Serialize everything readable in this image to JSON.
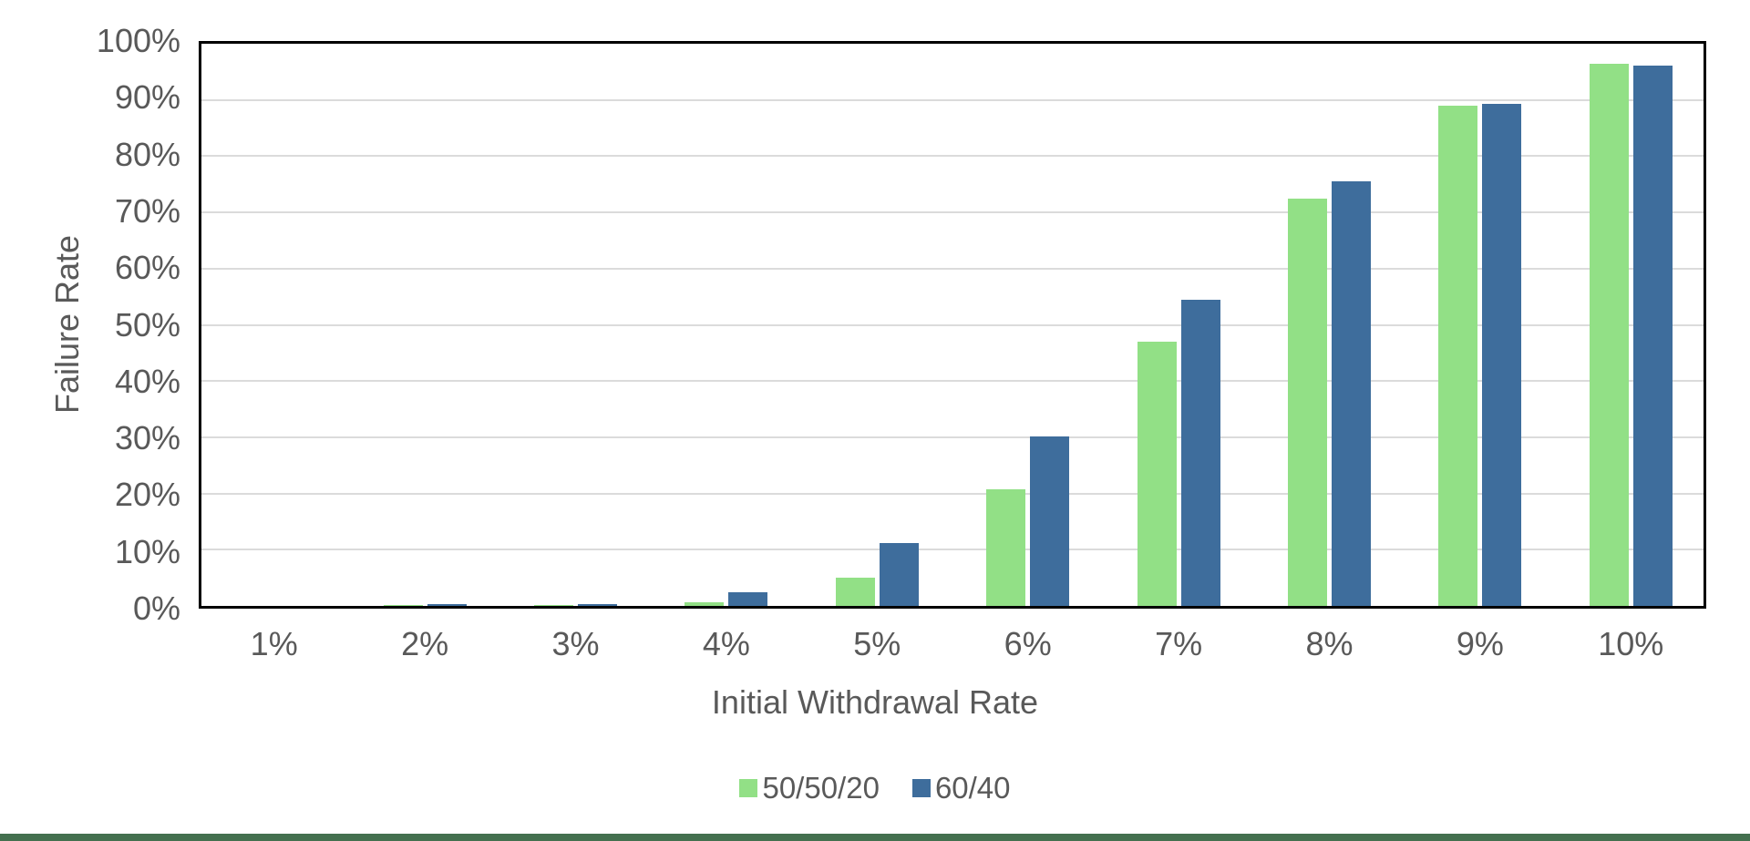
{
  "page": {
    "background": "#ffffff",
    "bottom_accent_color": "#44704f",
    "text_color": "#595959",
    "gridline_color": "#dbdbdb",
    "axis_color": "#000000"
  },
  "chart_data": {
    "type": "bar",
    "title": "",
    "xlabel": "Initial Withdrawal Rate",
    "ylabel": "Failure Rate",
    "categories": [
      "1%",
      "2%",
      "3%",
      "4%",
      "5%",
      "6%",
      "7%",
      "8%",
      "9%",
      "10%"
    ],
    "series": [
      {
        "name": "50/50/20",
        "color": "#92e086",
        "values": [
          0,
          0.1,
          0.2,
          0.7,
          5.0,
          20.8,
          47.0,
          72.5,
          89.0,
          96.5
        ]
      },
      {
        "name": "60/40",
        "color": "#3e6d9c",
        "values": [
          0,
          0.3,
          0.4,
          2.4,
          11.2,
          30.2,
          54.5,
          75.5,
          89.3,
          96.1
        ]
      }
    ],
    "y_axis": {
      "min": 0,
      "max": 100,
      "step": 10,
      "tick_labels_top_to_bottom": [
        "100%",
        "90%",
        "80%",
        "70%",
        "60%",
        "50%",
        "40%",
        "30%",
        "20%",
        "10%",
        "0%"
      ]
    },
    "grid": true,
    "legend_position": "bottom"
  }
}
